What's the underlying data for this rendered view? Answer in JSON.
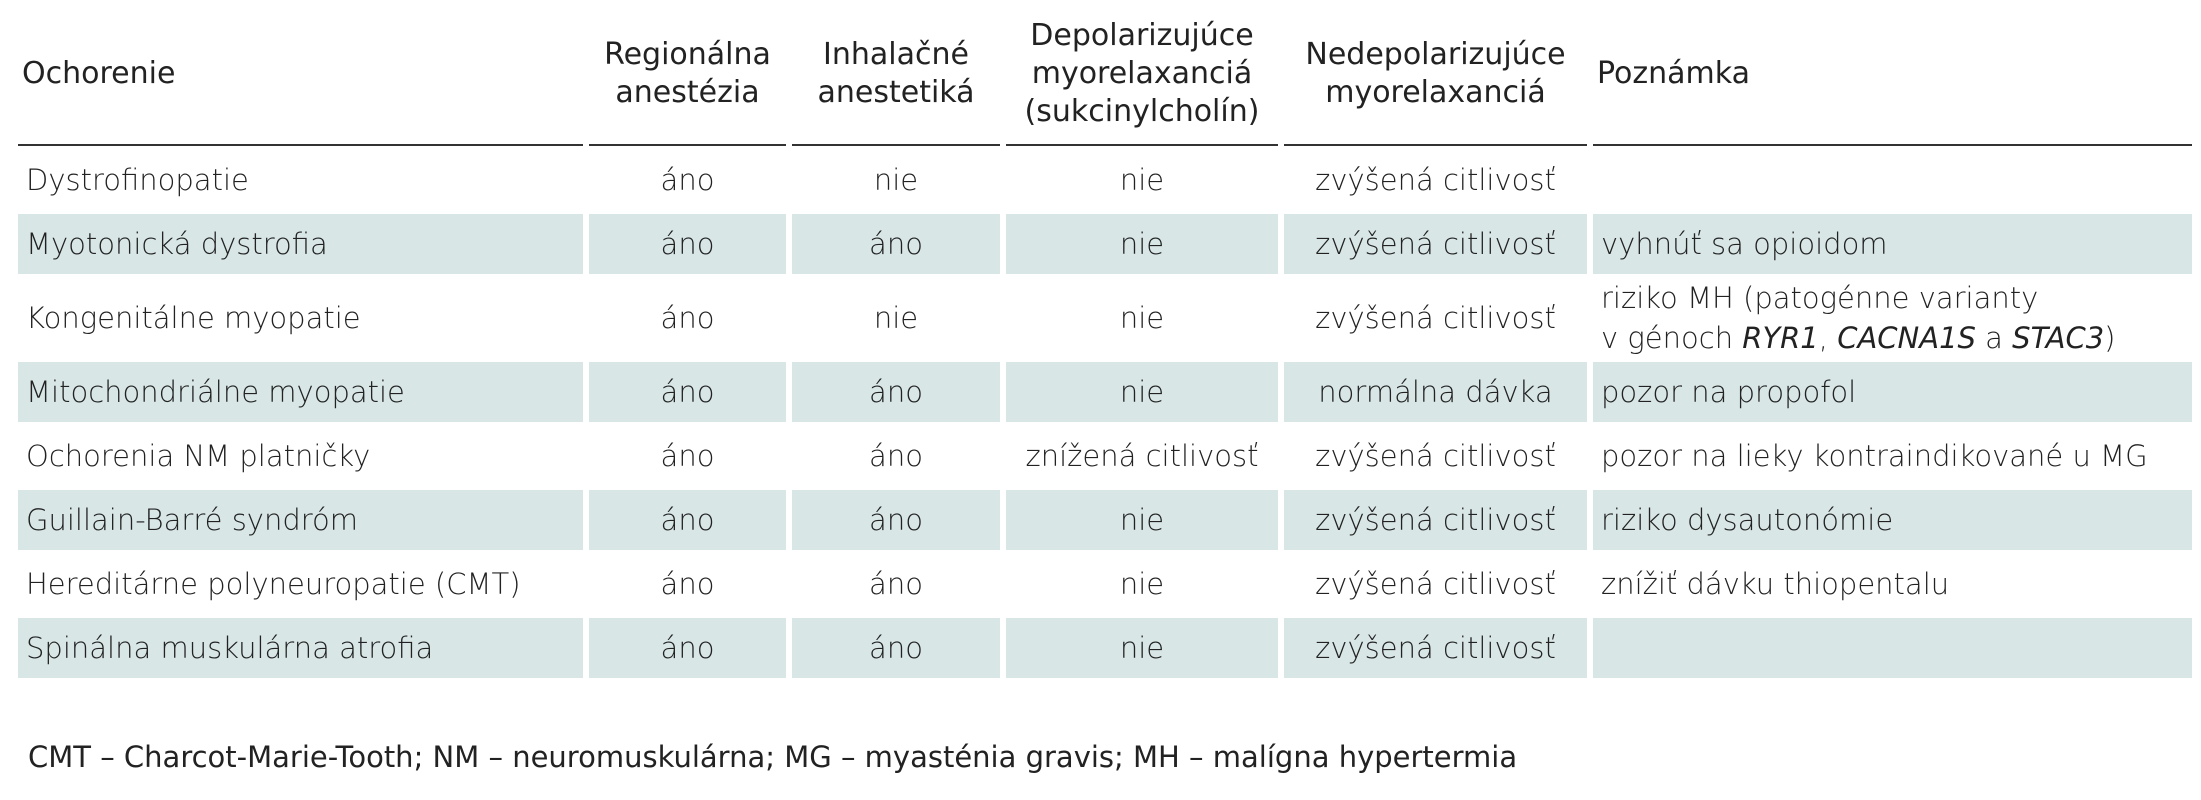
{
  "table": {
    "header": [
      [
        "Ochorenie"
      ],
      [
        "Regionálna",
        "anestézia"
      ],
      [
        "Inhalačné",
        "anestetiká"
      ],
      [
        "Depolarizujúce",
        "myorelaxanciá",
        "(sukcinylcholín)"
      ],
      [
        "Nedepolarizujúce",
        "myorelaxanciá"
      ],
      [
        "Poznámka"
      ]
    ],
    "rows": [
      [
        "Dystrofinopatie",
        "áno",
        "nie",
        "nie",
        "zvýšená citlivosť",
        null
      ],
      [
        "Myotonická dystrofia",
        "áno",
        "áno",
        "nie",
        "zvýšená citlivosť",
        "vyhnúť sa opioidom"
      ],
      [
        "Kongenitálne myopatie",
        "áno",
        "nie",
        "nie",
        "zvýšená citlivosť",
        [
          [
            {
              "text": "riziko MH (patogénne varianty",
              "italic": false
            }
          ],
          [
            {
              "text": "v génoch ",
              "italic": false
            },
            {
              "text": "RYR1",
              "italic": true
            },
            {
              "text": ", ",
              "italic": false
            },
            {
              "text": "CACNA1S",
              "italic": true
            },
            {
              "text": " a ",
              "italic": false
            },
            {
              "text": "STAC3",
              "italic": true
            },
            {
              "text": ")",
              "italic": false
            }
          ]
        ]
      ],
      [
        "Mitochondriálne myopatie",
        "áno",
        "áno",
        "nie",
        "normálna dávka",
        "pozor na propofol"
      ],
      [
        "Ochorenia NM platničky",
        "áno",
        "áno",
        "znížená citlivosť",
        "zvýšená citlivosť",
        "pozor na lieky kontraindikované u MG"
      ],
      [
        "Guillain-Barré syndróm",
        "áno",
        "áno",
        "nie",
        "zvýšená citlivosť",
        "riziko dysautonómie"
      ],
      [
        "Hereditárne polyneuropatie (CMT)",
        "áno",
        "áno",
        "nie",
        "zvýšená citlivosť",
        "znížiť dávku thiopentalu"
      ],
      [
        "Spinálna muskulárna atrofia",
        "áno",
        "áno",
        "nie",
        "zvýšená citlivosť",
        null
      ]
    ],
    "footnote": "CMT – Charcot-Marie-Tooth; NM – neuromuskulárna; MG – myasténia gravis; MH – malígna hypertermia"
  }
}
